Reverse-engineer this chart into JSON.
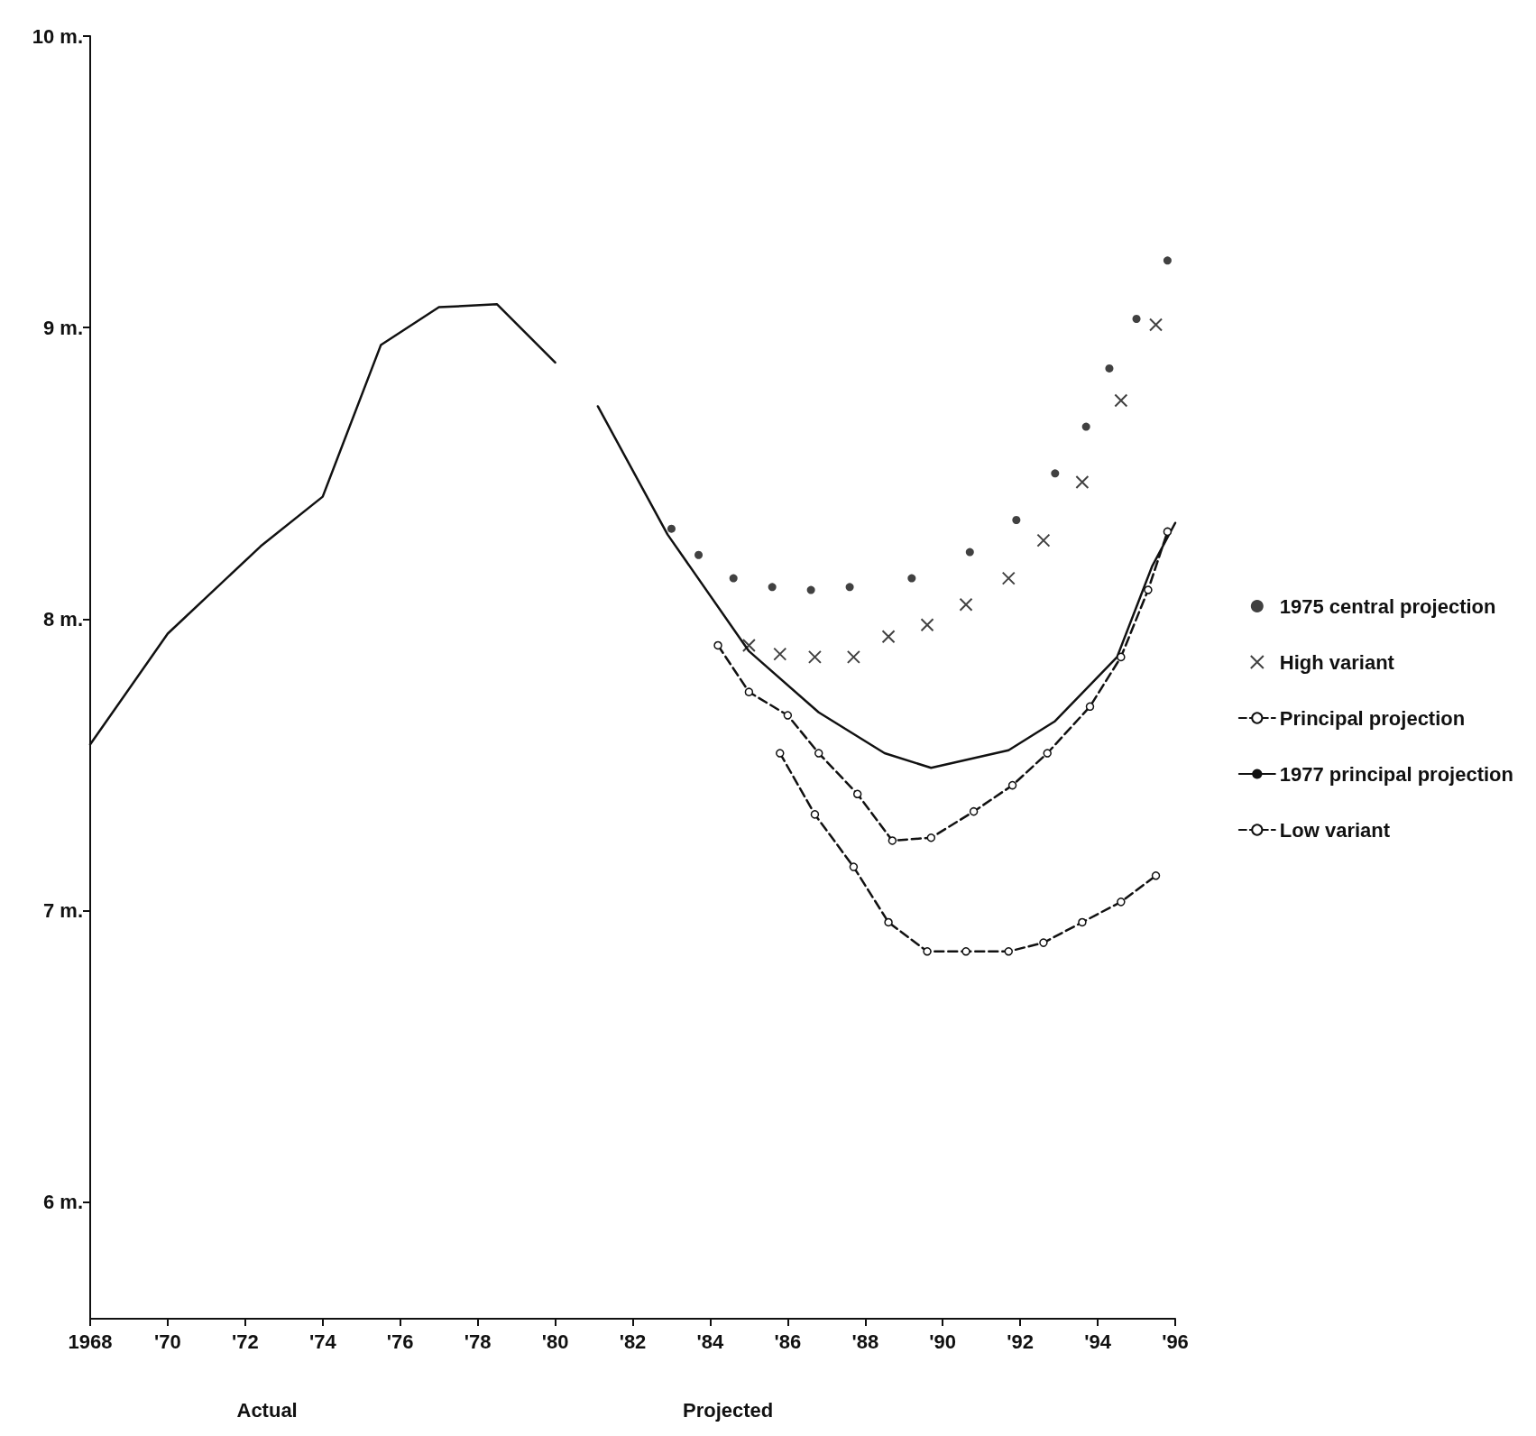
{
  "chart_data": {
    "type": "line",
    "xlim": [
      1968,
      1996
    ],
    "ylim": [
      5.6,
      10
    ],
    "xticks": [
      1968,
      {
        "value": 1970,
        "label": "'70"
      },
      {
        "value": 1972,
        "label": "'72"
      },
      {
        "value": 1974,
        "label": "'74"
      },
      {
        "value": 1976,
        "label": "'76"
      },
      {
        "value": 1978,
        "label": "'78"
      },
      {
        "value": 1980,
        "label": "'80"
      },
      {
        "value": 1982,
        "label": "'82"
      },
      {
        "value": 1984,
        "label": "'84"
      },
      {
        "value": 1986,
        "label": "'86"
      },
      {
        "value": 1988,
        "label": "'88"
      },
      {
        "value": 1990,
        "label": "'90"
      },
      {
        "value": 1992,
        "label": "'92"
      },
      {
        "value": 1994,
        "label": "'94"
      },
      {
        "value": 1996,
        "label": "'96"
      }
    ],
    "yticks": [
      {
        "value": 6,
        "label": "6 m."
      },
      {
        "value": 7,
        "label": "7 m."
      },
      {
        "value": 8,
        "label": "8 m."
      },
      {
        "value": 9,
        "label": "9 m."
      },
      {
        "value": 10,
        "label": "10 m."
      }
    ],
    "grid": false,
    "legend": "right",
    "annotations": [
      "Actual",
      "Projected"
    ],
    "series": [
      {
        "color": "#111111",
        "marker": "none",
        "line_style": "solid",
        "x": [
          1968,
          1970,
          1972.4,
          1974,
          1975.5,
          1977,
          1978.5,
          1980
        ],
        "values": [
          7.57,
          7.95,
          8.25,
          8.42,
          8.94,
          9.07,
          9.08,
          8.88
        ]
      },
      {
        "name": "1975 central projection",
        "type": "scatter",
        "color": "#111111",
        "marker": "circle",
        "x": [
          1983,
          1983.7,
          1984.6,
          1985.6,
          1986.6,
          1987.6,
          1989.2,
          1990.7,
          1991.9,
          1992.9,
          1993.7,
          1994.3,
          1995,
          1995.8
        ],
        "values": [
          8.31,
          8.22,
          8.14,
          8.11,
          8.1,
          8.11,
          8.14,
          8.23,
          8.34,
          8.5,
          8.66,
          8.86,
          9.03,
          9.23
        ]
      },
      {
        "name": "High variant",
        "type": "scatter",
        "color": "#111111",
        "marker": "cross",
        "x": [
          1985,
          1985.8,
          1986.7,
          1987.7,
          1988.6,
          1989.6,
          1990.6,
          1991.7,
          1992.6,
          1993.6,
          1994.6,
          1995.5
        ],
        "values": [
          7.91,
          7.88,
          7.87,
          7.87,
          7.94,
          7.98,
          8.05,
          8.14,
          8.27,
          8.47,
          8.75,
          9.01
        ]
      },
      {
        "name": "Principal projection",
        "type": "line",
        "color": "#111111",
        "marker": "circle",
        "line_style": "dashed",
        "x": [
          1984.2,
          1985,
          1986,
          1986.8,
          1987.8,
          1988.7,
          1989.7,
          1990.8,
          1991.8,
          1992.7,
          1993.8,
          1994.6,
          1995.3,
          1995.8
        ],
        "values": [
          7.91,
          7.75,
          7.67,
          7.54,
          7.4,
          7.24,
          7.25,
          7.34,
          7.43,
          7.54,
          7.7,
          7.87,
          8.1,
          8.3
        ]
      },
      {
        "name": "1977 principal projection",
        "color": "#111111",
        "marker": "none",
        "line_style": "solid",
        "x": [
          1981.1,
          1982.9,
          1985,
          1986.8,
          1988.5,
          1989.7,
          1991.7,
          1992.9,
          1994.5,
          1995.4,
          1996
        ],
        "values": [
          8.73,
          8.29,
          7.89,
          7.68,
          7.54,
          7.49,
          7.55,
          7.65,
          7.87,
          8.18,
          8.33
        ]
      },
      {
        "name": "Low variant",
        "type": "line",
        "color": "#111111",
        "marker": "circle",
        "line_style": "dashed",
        "x": [
          1985.8,
          1986.7,
          1987.7,
          1988.6,
          1989.6,
          1990.6,
          1991.7,
          1992.6,
          1993.6,
          1994.6,
          1995.5
        ],
        "values": [
          7.54,
          7.33,
          7.15,
          6.96,
          6.86,
          6.86,
          6.86,
          6.89,
          6.96,
          7.03,
          7.12
        ]
      }
    ]
  }
}
